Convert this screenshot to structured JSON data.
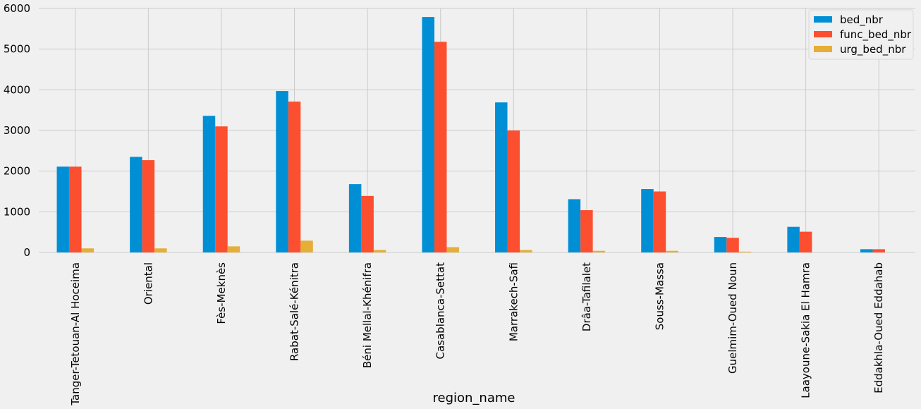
{
  "chart_data": {
    "type": "bar",
    "title": "",
    "xlabel": "region_name",
    "ylabel": "",
    "ylim": [
      0,
      6000
    ],
    "yticks": [
      0,
      1000,
      2000,
      3000,
      4000,
      5000,
      6000
    ],
    "grid": true,
    "legend_position": "top-right",
    "categories": [
      "Tanger-Tetouan-Al Hoceima",
      "Oriental",
      "Fès-Meknès",
      "Rabat-Salé-Kénitra",
      "Béni Mellal-Khénifra",
      "Casablanca-Settat",
      "Marrakech-Safi",
      "Drâa-Tafilalet",
      "Souss-Massa",
      "Guelmim-Oued Noun",
      "Laayoune-Sakia El Hamra",
      "Eddakhla-Oued Eddahab"
    ],
    "series": [
      {
        "name": "bed_nbr",
        "color": "#008fd5",
        "values": [
          2110,
          2350,
          3360,
          3970,
          1680,
          5790,
          3690,
          1310,
          1560,
          380,
          630,
          80
        ]
      },
      {
        "name": "func_bed_nbr",
        "color": "#fc4f30",
        "values": [
          2110,
          2270,
          3100,
          3710,
          1390,
          5180,
          3000,
          1040,
          1500,
          360,
          510,
          80
        ]
      },
      {
        "name": "urg_bed_nbr",
        "color": "#e5ae38",
        "values": [
          100,
          100,
          150,
          290,
          60,
          130,
          60,
          40,
          40,
          20,
          0,
          0
        ]
      }
    ]
  }
}
